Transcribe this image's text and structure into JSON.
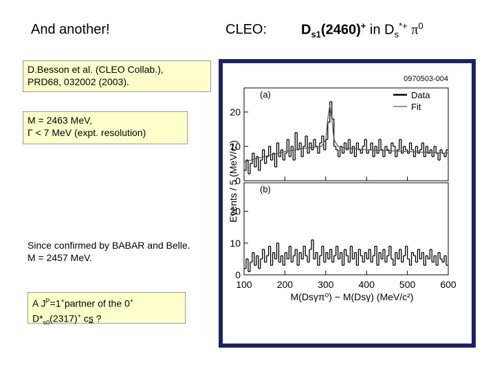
{
  "slide": {
    "title": "And another!",
    "heading_label": "CLEO:",
    "heading": {
      "d1": "D",
      "sub1": "s1",
      "main": "(2460)",
      "sup1": "+",
      "in": "in",
      "d2": "D",
      "sub2": "s",
      "sup2": "*+",
      "pi": "π",
      "sup3": "0"
    },
    "ref_box": [
      "D.Besson et al. (CLEO Collab.),",
      "PRD68, 032002 (2003)."
    ],
    "mass_box": [
      "M = 2463 MeV,",
      "Γ < 7 MeV (expt. resolution)"
    ],
    "note": [
      "Since confirmed by BABAR and Belle.",
      "M = 2457 MeV."
    ],
    "partner_box": {
      "line1": [
        "A J",
        "P",
        "=1",
        "+",
        "partner of the  0",
        "+"
      ],
      "line2": [
        "D*",
        "s0",
        "(2317)",
        "+",
        " c",
        "s",
        " ?"
      ]
    }
  },
  "chart_data": {
    "type": "histogram",
    "id_label": "0970503-004",
    "y_label": "Events / 5 (MeV/c²)",
    "x_label": "M(Dsγπ⁰) − M(Dsγ) (MeV/c²)",
    "xlim": [
      100,
      600
    ],
    "xticks": [
      100,
      200,
      300,
      400,
      500,
      600
    ],
    "bins": [
      100,
      105,
      110,
      115,
      120,
      125,
      130,
      135,
      140,
      145,
      150,
      155,
      160,
      165,
      170,
      175,
      180,
      185,
      190,
      195,
      200,
      205,
      210,
      215,
      220,
      225,
      230,
      235,
      240,
      245,
      250,
      255,
      260,
      265,
      270,
      275,
      280,
      285,
      290,
      295,
      300,
      305,
      310,
      315,
      320,
      325,
      330,
      335,
      340,
      345,
      350,
      355,
      360,
      365,
      370,
      375,
      380,
      385,
      390,
      395,
      400,
      405,
      410,
      415,
      420,
      425,
      430,
      435,
      440,
      445,
      450,
      455,
      460,
      465,
      470,
      475,
      480,
      485,
      490,
      495,
      500,
      505,
      510,
      515,
      520,
      525,
      530,
      535,
      540,
      545,
      550,
      555,
      560,
      565,
      570,
      575,
      580,
      585,
      590,
      595,
      600
    ],
    "panels": [
      {
        "label": "(a)",
        "ylim": [
          0,
          27
        ],
        "yticks": [
          0,
          10,
          20
        ],
        "series": [
          {
            "name": "Data",
            "color": "#000000",
            "values": [
              3,
              6,
              2,
              5,
              8,
              4,
              7,
              3,
              6,
              9,
              5,
              7,
              10,
              6,
              8,
              4,
              11,
              7,
              9,
              6,
              8,
              12,
              7,
              10,
              6,
              14,
              9,
              11,
              7,
              10,
              13,
              8,
              11,
              9,
              12,
              10,
              8,
              11,
              13,
              9,
              12,
              17,
              23,
              18,
              10,
              9,
              7,
              10,
              8,
              11,
              9,
              12,
              8,
              10,
              7,
              11,
              9,
              8,
              10,
              12,
              8,
              9,
              11,
              7,
              10,
              8,
              12,
              9,
              7,
              10,
              9,
              8,
              11,
              10,
              7,
              9,
              12,
              8,
              10,
              9,
              8,
              11,
              9,
              7,
              10,
              8,
              9,
              11,
              7,
              10,
              8,
              9,
              7,
              10,
              8,
              6,
              9,
              8,
              7,
              9
            ]
          },
          {
            "name": "Fit",
            "color": "#555555",
            "x": [
              100,
              150,
              200,
              250,
              290,
              300,
              305,
              310,
              315,
              320,
              330,
              350,
              400,
              500,
              600
            ],
            "values": [
              5.5,
              7,
              8.5,
              9.5,
              10,
              12,
              18,
              22,
              18,
              12,
              10,
              9.5,
              9,
              8.5,
              8
            ]
          }
        ]
      },
      {
        "label": "(b)",
        "ylim": [
          0,
          29
        ],
        "yticks": [
          0,
          10,
          20
        ],
        "series": [
          {
            "color": "#000000",
            "values": [
              2,
              5,
              1,
              4,
              7,
              3,
              6,
              2,
              5,
              8,
              4,
              6,
              9,
              3,
              7,
              5,
              10,
              4,
              6,
              3,
              7,
              5,
              9,
              4,
              6,
              8,
              3,
              7,
              5,
              9,
              6,
              4,
              8,
              11,
              5,
              7,
              3,
              6,
              9,
              4,
              7,
              5,
              8,
              4,
              6,
              9,
              5,
              7,
              3,
              8,
              6,
              4,
              9,
              5,
              7,
              3,
              8,
              6,
              4,
              7,
              5,
              8,
              4,
              6,
              9,
              3,
              7,
              5,
              8,
              4,
              6,
              9,
              5,
              3,
              7,
              5,
              8,
              4,
              6,
              9,
              5,
              3,
              7,
              6,
              4,
              8,
              5,
              7,
              3,
              6,
              5,
              8,
              4,
              6,
              3,
              7,
              5,
              4,
              6,
              3
            ]
          }
        ]
      }
    ]
  }
}
